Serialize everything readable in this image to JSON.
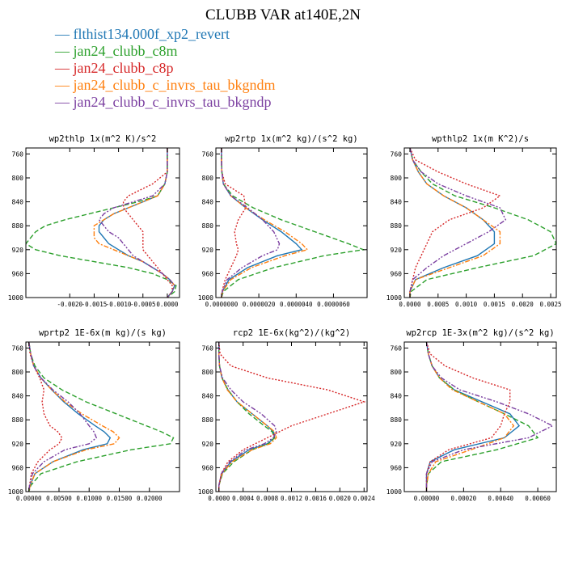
{
  "title": "CLUBB VAR at140E,2N",
  "legend": [
    {
      "label": "— flthist134.000f_xp2_revert",
      "color": "#1f77b4"
    },
    {
      "label": "— jan24_clubb_c8m",
      "color": "#2ca02c"
    },
    {
      "label": "— jan24_clubb_c8p",
      "color": "#d62728"
    },
    {
      "label": "— jan24_clubb_c_invrs_tau_bkgndm",
      "color": "#ff7f0e"
    },
    {
      "label": "— jan24_clubb_c_invrs_tau_bkgndp",
      "color": "#7b3fa0"
    }
  ],
  "chart_data": [
    {
      "type": "line",
      "title": "wp2thlp  1x(m^2 K)/s^2",
      "xlim": [
        -0.0029,
        0.00025
      ],
      "ylim": [
        1000,
        750
      ],
      "xticks": [
        -0.002,
        -0.0015,
        -0.001,
        -0.0005,
        0.0
      ],
      "xtick_labels": [
        "-0.0020",
        "-0.0015",
        "-0.0010",
        "-0.0005",
        "0.0000"
      ],
      "yticks": [
        760,
        800,
        840,
        880,
        920,
        960,
        1000
      ],
      "y": [
        750,
        770,
        790,
        810,
        830,
        840,
        850,
        860,
        870,
        880,
        890,
        900,
        910,
        920,
        930,
        940,
        950,
        960,
        970,
        980,
        990,
        1000
      ],
      "series": [
        {
          "name": "flthist134.000f_xp2_revert",
          "values": [
            0.0,
            0.0,
            0.0,
            -5e-05,
            -0.0002,
            -0.0005,
            -0.0008,
            -0.0011,
            -0.0013,
            -0.0014,
            -0.0014,
            -0.0013,
            -0.0012,
            -0.001,
            -0.0008,
            -0.0005,
            -0.0003,
            -0.0001,
            5e-05,
            0.00015,
            0.0001,
            0.0
          ]
        },
        {
          "name": "jan24_clubb_c8m",
          "values": [
            0.0,
            0.0,
            0.0,
            -5e-05,
            -0.0002,
            -0.0006,
            -0.0011,
            -0.0016,
            -0.0021,
            -0.0025,
            -0.0027,
            -0.0028,
            -0.0029,
            -0.0027,
            -0.0022,
            -0.0015,
            -0.0008,
            -0.0003,
            0.0,
            0.00018,
            0.00015,
            0.0
          ]
        },
        {
          "name": "jan24_clubb_c8p",
          "values": [
            0.0,
            0.0,
            0.0,
            -0.0003,
            -0.0008,
            -0.0009,
            -0.0009,
            -0.0008,
            -0.0007,
            -0.0006,
            -0.0005,
            -0.0005,
            -0.0005,
            -0.0005,
            -0.0004,
            -0.0003,
            -0.0002,
            -0.0001,
            0.0,
            0.0001,
            0.0001,
            0.0
          ]
        },
        {
          "name": "jan24_clubb_c_invrs_tau_bkgndm",
          "values": [
            0.0,
            0.0,
            0.0,
            -5e-05,
            -0.0002,
            -0.0005,
            -0.0008,
            -0.0011,
            -0.0013,
            -0.0015,
            -0.0015,
            -0.0015,
            -0.0014,
            -0.0011,
            -0.0008,
            -0.0005,
            -0.0003,
            -0.0001,
            5e-05,
            0.00015,
            0.0001,
            0.0
          ]
        },
        {
          "name": "jan24_clubb_c_invrs_tau_bkgndp",
          "values": [
            0.0,
            0.0,
            0.0,
            -5e-05,
            -0.0003,
            -0.0007,
            -0.0011,
            -0.0013,
            -0.0014,
            -0.0013,
            -0.0012,
            -0.001,
            -0.0009,
            -0.0008,
            -0.0007,
            -0.0005,
            -0.0003,
            -0.0001,
            5e-05,
            0.00015,
            0.0001,
            0.0
          ]
        }
      ]
    },
    {
      "type": "line",
      "title": "wp2rtp  1x(m^2 kg)/(s^2 kg)",
      "xlim": [
        -3e-07,
        7.8e-06
      ],
      "ylim": [
        1000,
        750
      ],
      "xticks": [
        0.0,
        2e-06,
        4e-06,
        6e-06
      ],
      "xtick_labels": [
        "0.0000000",
        "0.0000020",
        "0.0000040",
        "0.0000060"
      ],
      "yticks": [
        760,
        800,
        840,
        880,
        920,
        960,
        1000
      ],
      "y": [
        750,
        770,
        790,
        810,
        830,
        850,
        870,
        890,
        910,
        920,
        930,
        950,
        970,
        990,
        1000
      ],
      "series": [
        {
          "name": "flthist134.000f_xp2_revert",
          "values": [
            0.0,
            0.0,
            2e-08,
            1e-07,
            5e-07,
            1.3e-06,
            2.2e-06,
            3.2e-06,
            4e-06,
            4.3e-06,
            3e-06,
            1.4e-06,
            4e-07,
            5e-08,
            0.0
          ]
        },
        {
          "name": "jan24_clubb_c8m",
          "values": [
            0.0,
            0.0,
            2e-08,
            1e-07,
            6e-07,
            1.7e-06,
            3.2e-06,
            5e-06,
            6.8e-06,
            7.6e-06,
            5.5e-06,
            2.8e-06,
            9e-07,
            1e-07,
            0.0
          ]
        },
        {
          "name": "jan24_clubb_c8p",
          "values": [
            0.0,
            0.0,
            2e-08,
            2e-07,
            1.2e-06,
            1.3e-06,
            9e-07,
            7e-07,
            8e-07,
            9e-07,
            8e-07,
            5e-07,
            2e-07,
            3e-08,
            0.0
          ]
        },
        {
          "name": "jan24_clubb_c_invrs_tau_bkgndm",
          "values": [
            0.0,
            0.0,
            2e-08,
            1e-07,
            5e-07,
            1.3e-06,
            2.3e-06,
            3.4e-06,
            4.3e-06,
            4.6e-06,
            3.4e-06,
            1.6e-06,
            5e-07,
            5e-08,
            0.0
          ]
        },
        {
          "name": "jan24_clubb_c_invrs_tau_bkgndp",
          "values": [
            0.0,
            0.0,
            2e-08,
            1e-07,
            5e-07,
            1.4e-06,
            2.2e-06,
            2.8e-06,
            3.1e-06,
            3e-06,
            2.2e-06,
            1.1e-06,
            3e-07,
            4e-08,
            0.0
          ]
        }
      ]
    },
    {
      "type": "line",
      "title": "wpthlp2  1x(m K^2)/s",
      "xlim": [
        -0.0001,
        0.0026
      ],
      "ylim": [
        1000,
        750
      ],
      "xticks": [
        0.0,
        0.0005,
        0.001,
        0.0015,
        0.002,
        0.0025
      ],
      "xtick_labels": [
        "0.0000",
        "0.0005",
        "0.0010",
        "0.0015",
        "0.0020",
        "0.0025"
      ],
      "yticks": [
        760,
        800,
        840,
        880,
        920,
        960,
        1000
      ],
      "y": [
        750,
        770,
        790,
        810,
        830,
        850,
        870,
        890,
        910,
        930,
        950,
        970,
        990,
        1000
      ],
      "series": [
        {
          "name": "flthist134.000f_xp2_revert",
          "values": [
            0.0,
            5e-05,
            0.00015,
            0.0003,
            0.0006,
            0.001,
            0.0013,
            0.0015,
            0.0015,
            0.0012,
            0.0006,
            0.0001,
            0.0,
            0.0
          ]
        },
        {
          "name": "jan24_clubb_c8m",
          "values": [
            0.0,
            5e-05,
            0.0002,
            0.0004,
            0.0008,
            0.0015,
            0.0021,
            0.0025,
            0.0026,
            0.0022,
            0.0012,
            0.0003,
            2e-05,
            0.0
          ]
        },
        {
          "name": "jan24_clubb_c8p",
          "values": [
            0.0,
            0.0001,
            0.0005,
            0.001,
            0.0016,
            0.0013,
            0.0007,
            0.0004,
            0.0003,
            0.0002,
            0.0001,
            5e-05,
            0.0,
            0.0
          ]
        },
        {
          "name": "jan24_clubb_c_invrs_tau_bkgndm",
          "values": [
            0.0,
            5e-05,
            0.00015,
            0.0003,
            0.0006,
            0.001,
            0.0013,
            0.0016,
            0.0016,
            0.0013,
            0.0007,
            0.0001,
            0.0,
            0.0
          ]
        },
        {
          "name": "jan24_clubb_c_invrs_tau_bkgndp",
          "values": [
            0.0,
            5e-05,
            0.0002,
            0.0005,
            0.001,
            0.0016,
            0.0017,
            0.0014,
            0.001,
            0.0006,
            0.0003,
            5e-05,
            0.0,
            0.0
          ]
        }
      ]
    },
    {
      "type": "line",
      "title": "wprtp2  1E-6x(m kg)/(s kg)",
      "xlim": [
        -0.0005,
        0.025
      ],
      "ylim": [
        1000,
        750
      ],
      "xticks": [
        0.0,
        0.005,
        0.01,
        0.015,
        0.02
      ],
      "xtick_labels": [
        "0.00000",
        "0.00500",
        "0.01000",
        "0.01500",
        "0.02000"
      ],
      "yticks": [
        760,
        800,
        840,
        880,
        920,
        960,
        1000
      ],
      "y": [
        750,
        770,
        790,
        810,
        830,
        850,
        870,
        890,
        900,
        910,
        920,
        930,
        950,
        970,
        990,
        1000
      ],
      "series": [
        {
          "name": "flthist134.000f_xp2_revert",
          "values": [
            0.0,
            0.0003,
            0.0008,
            0.002,
            0.0038,
            0.0058,
            0.0082,
            0.011,
            0.0125,
            0.0135,
            0.013,
            0.009,
            0.004,
            0.001,
            0.0002,
            0.0
          ]
        },
        {
          "name": "jan24_clubb_c8m",
          "values": [
            0.0,
            0.0003,
            0.001,
            0.0025,
            0.0055,
            0.0095,
            0.0145,
            0.0195,
            0.022,
            0.024,
            0.0235,
            0.017,
            0.008,
            0.002,
            0.0003,
            0.0
          ]
        },
        {
          "name": "jan24_clubb_c8p",
          "values": [
            0.0,
            0.0002,
            0.0008,
            0.0018,
            0.0025,
            0.0022,
            0.0025,
            0.0035,
            0.0048,
            0.0055,
            0.005,
            0.0035,
            0.0015,
            0.0004,
            0.0001,
            0.0
          ]
        },
        {
          "name": "jan24_clubb_c_invrs_tau_bkgndm",
          "values": [
            0.0,
            0.0003,
            0.0008,
            0.002,
            0.0038,
            0.006,
            0.0088,
            0.0122,
            0.014,
            0.015,
            0.0142,
            0.0095,
            0.004,
            0.001,
            0.0002,
            0.0
          ]
        },
        {
          "name": "jan24_clubb_c_invrs_tau_bkgndp",
          "values": [
            0.0,
            0.0003,
            0.0008,
            0.002,
            0.004,
            0.0065,
            0.0085,
            0.01,
            0.0108,
            0.0112,
            0.01,
            0.006,
            0.0025,
            0.0006,
            0.0001,
            0.0
          ]
        }
      ]
    },
    {
      "type": "line",
      "title": "rcp2  1E-6x(kg^2)/(kg^2)",
      "xlim": [
        -5e-05,
        0.00245
      ],
      "ylim": [
        1000,
        750
      ],
      "xticks": [
        0.0,
        0.0004,
        0.0008,
        0.0012,
        0.0016,
        0.002,
        0.0024
      ],
      "xtick_labels": [
        "0.0000",
        "0.0004",
        "0.0008",
        "0.0012",
        "0.0016",
        "0.0020",
        "0.0024"
      ],
      "yticks": [
        760,
        800,
        840,
        880,
        920,
        960,
        1000
      ],
      "y": [
        750,
        770,
        790,
        810,
        830,
        850,
        870,
        890,
        900,
        910,
        920,
        930,
        950,
        970,
        990,
        1000
      ],
      "series": [
        {
          "name": "flthist134.000f_xp2_revert",
          "values": [
            0.0,
            0.0,
            1e-05,
            5e-05,
            0.00015,
            0.0003,
            0.00055,
            0.0008,
            0.0009,
            0.00092,
            0.0008,
            0.0005,
            0.0002,
            5e-05,
            0.0,
            0.0
          ]
        },
        {
          "name": "jan24_clubb_c8m",
          "values": [
            0.0,
            0.0,
            1e-05,
            5e-05,
            0.00015,
            0.0003,
            0.0005,
            0.00075,
            0.00088,
            0.00092,
            0.00082,
            0.00055,
            0.00025,
            6e-05,
            0.0,
            0.0
          ]
        },
        {
          "name": "jan24_clubb_c8p",
          "values": [
            0.0,
            2e-05,
            0.0002,
            0.0008,
            0.0018,
            0.0024,
            0.0018,
            0.0012,
            0.001,
            0.0008,
            0.0006,
            0.0004,
            0.00015,
            4e-05,
            0.0,
            0.0
          ]
        },
        {
          "name": "jan24_clubb_c_invrs_tau_bkgndm",
          "values": [
            0.0,
            0.0,
            1e-05,
            5e-05,
            0.00014,
            0.0003,
            0.00055,
            0.0008,
            0.00092,
            0.00095,
            0.00085,
            0.00055,
            0.00022,
            5e-05,
            0.0,
            0.0
          ]
        },
        {
          "name": "jan24_clubb_c_invrs_tau_bkgndp",
          "values": [
            0.0,
            0.0,
            1e-05,
            6e-05,
            0.0002,
            0.0004,
            0.0007,
            0.00092,
            0.00095,
            0.0009,
            0.00075,
            0.00045,
            0.00018,
            4e-05,
            0.0,
            0.0
          ]
        }
      ]
    },
    {
      "type": "line",
      "title": "wp2rcp  1E-3x(m^2 kg)/(s^2 kg)",
      "xlim": [
        -0.00012,
        0.0007
      ],
      "ylim": [
        1000,
        750
      ],
      "xticks": [
        0.0,
        0.0002,
        0.0004,
        0.0006
      ],
      "xtick_labels": [
        "0.00000",
        "0.00020",
        "0.00040",
        "0.00060"
      ],
      "yticks": [
        760,
        800,
        840,
        880,
        920,
        960,
        1000
      ],
      "y": [
        750,
        770,
        790,
        810,
        830,
        850,
        870,
        890,
        910,
        930,
        950,
        970,
        990,
        1000
      ],
      "series": [
        {
          "name": "flthist134.000f_xp2_revert",
          "values": [
            0.0,
            1e-05,
            3e-05,
            7e-05,
            0.00015,
            0.0003,
            0.00045,
            0.0005,
            0.00042,
            0.00015,
            2e-05,
            0.0,
            0.0,
            0.0
          ]
        },
        {
          "name": "jan24_clubb_c8m",
          "values": [
            0.0,
            1e-05,
            3e-05,
            7e-05,
            0.00015,
            0.00028,
            0.00042,
            0.00055,
            0.0006,
            0.00038,
            8e-05,
            1e-05,
            0.0,
            0.0
          ]
        },
        {
          "name": "jan24_clubb_c8p",
          "values": [
            0.0,
            2e-05,
            0.0001,
            0.00025,
            0.00045,
            0.00045,
            0.00042,
            0.0004,
            0.00035,
            0.00012,
            2e-05,
            0.0,
            0.0,
            0.0
          ]
        },
        {
          "name": "jan24_clubb_c_invrs_tau_bkgndm",
          "values": [
            0.0,
            1e-05,
            3e-05,
            7e-05,
            0.00014,
            0.00028,
            0.00042,
            0.00047,
            0.00042,
            0.00024,
            5e-05,
            1e-05,
            0.0,
            0.0
          ]
        },
        {
          "name": "jan24_clubb_c_invrs_tau_bkgndp",
          "values": [
            0.0,
            1e-05,
            3e-05,
            8e-05,
            0.00018,
            0.00038,
            0.00055,
            0.00068,
            0.00055,
            0.0002,
            3e-05,
            0.0,
            0.0,
            0.0
          ]
        }
      ]
    }
  ]
}
